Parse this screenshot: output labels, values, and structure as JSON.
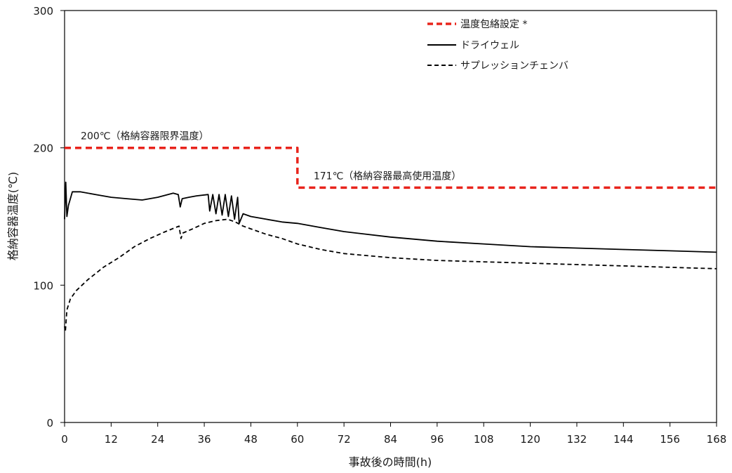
{
  "chart_data": {
    "type": "line",
    "xlabel": "事故後の時間(h)",
    "ylabel": "格納容器温度(℃)",
    "xlim": [
      0,
      168
    ],
    "ylim": [
      0,
      300
    ],
    "xticks": [
      "0",
      "12",
      "24",
      "36",
      "48",
      "60",
      "72",
      "84",
      "96",
      "108",
      "120",
      "132",
      "144",
      "156",
      "168"
    ],
    "yticks": [
      "0",
      "100",
      "200",
      "300"
    ],
    "grid": false,
    "legend_position": "top-right",
    "series": [
      {
        "name": "温度包絡設定 *",
        "color": "#e8241c",
        "style": "dashed-thick",
        "points": [
          [
            0,
            200
          ],
          [
            60,
            200
          ],
          [
            60,
            171
          ],
          [
            168,
            171
          ]
        ]
      },
      {
        "name": "ドライウェル",
        "color": "#000000",
        "style": "solid",
        "points": [
          [
            0,
            148
          ],
          [
            0.3,
            175
          ],
          [
            0.6,
            150
          ],
          [
            1,
            158
          ],
          [
            2,
            168
          ],
          [
            4,
            168
          ],
          [
            8,
            166
          ],
          [
            12,
            164
          ],
          [
            16,
            163
          ],
          [
            20,
            162
          ],
          [
            24,
            164
          ],
          [
            28,
            167
          ],
          [
            29.3,
            166
          ],
          [
            29.8,
            157
          ],
          [
            30.3,
            163
          ],
          [
            32,
            164
          ],
          [
            34,
            165
          ],
          [
            37,
            166
          ],
          [
            37.4,
            154
          ],
          [
            38.2,
            166
          ],
          [
            39,
            152
          ],
          [
            39.8,
            166
          ],
          [
            40.6,
            151
          ],
          [
            41.4,
            166
          ],
          [
            42.2,
            150
          ],
          [
            43,
            165
          ],
          [
            43.8,
            148
          ],
          [
            44.6,
            164
          ],
          [
            45,
            145
          ],
          [
            46,
            152
          ],
          [
            48,
            150
          ],
          [
            52,
            148
          ],
          [
            56,
            146
          ],
          [
            60,
            145
          ],
          [
            66,
            142
          ],
          [
            72,
            139
          ],
          [
            84,
            135
          ],
          [
            96,
            132
          ],
          [
            108,
            130
          ],
          [
            120,
            128
          ],
          [
            132,
            127
          ],
          [
            144,
            126
          ],
          [
            156,
            125
          ],
          [
            168,
            124
          ]
        ]
      },
      {
        "name": "サプレッションチェンバ",
        "color": "#000000",
        "style": "dashed",
        "points": [
          [
            0,
            70
          ],
          [
            0.2,
            66
          ],
          [
            0.6,
            82
          ],
          [
            1.5,
            90
          ],
          [
            3,
            96
          ],
          [
            6,
            104
          ],
          [
            10,
            113
          ],
          [
            14,
            120
          ],
          [
            18,
            128
          ],
          [
            22,
            134
          ],
          [
            26,
            139
          ],
          [
            29.5,
            143
          ],
          [
            30,
            134
          ],
          [
            30.5,
            138
          ],
          [
            33,
            141
          ],
          [
            36,
            145
          ],
          [
            39,
            147
          ],
          [
            42,
            148
          ],
          [
            44,
            146
          ],
          [
            46,
            143
          ],
          [
            48,
            141
          ],
          [
            52,
            137
          ],
          [
            56,
            134
          ],
          [
            60,
            130
          ],
          [
            66,
            126
          ],
          [
            72,
            123
          ],
          [
            84,
            120
          ],
          [
            96,
            118
          ],
          [
            108,
            117
          ],
          [
            120,
            116
          ],
          [
            132,
            115
          ],
          [
            144,
            114
          ],
          [
            156,
            113
          ],
          [
            168,
            112
          ]
        ]
      }
    ],
    "annotations": [
      {
        "text": "200℃（格納容器限界温度）",
        "x": 2,
        "y": 200
      },
      {
        "text": "171℃（格納容器最高使用温度）",
        "x": 62,
        "y": 171
      }
    ]
  }
}
